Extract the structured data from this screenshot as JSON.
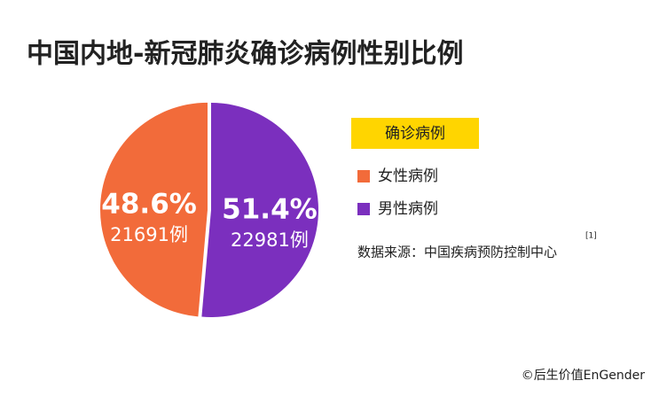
{
  "chart_data": {
    "type": "pie",
    "title": "中国内地-新冠肺炎确诊病例性别比例",
    "legend_title": "确诊病例",
    "categories": [
      "女性病例",
      "男性病例"
    ],
    "values": [
      48.6,
      51.4
    ],
    "value_labels": [
      "48.6%",
      "51.4%"
    ],
    "count_labels": [
      "21691例",
      "22981例"
    ],
    "colors": [
      "#f26b3a",
      "#7b2fbe"
    ],
    "source": "数据来源：中国疾病预防控制中心",
    "source_note": "[1]",
    "credit": "©后生价值EnGender"
  }
}
